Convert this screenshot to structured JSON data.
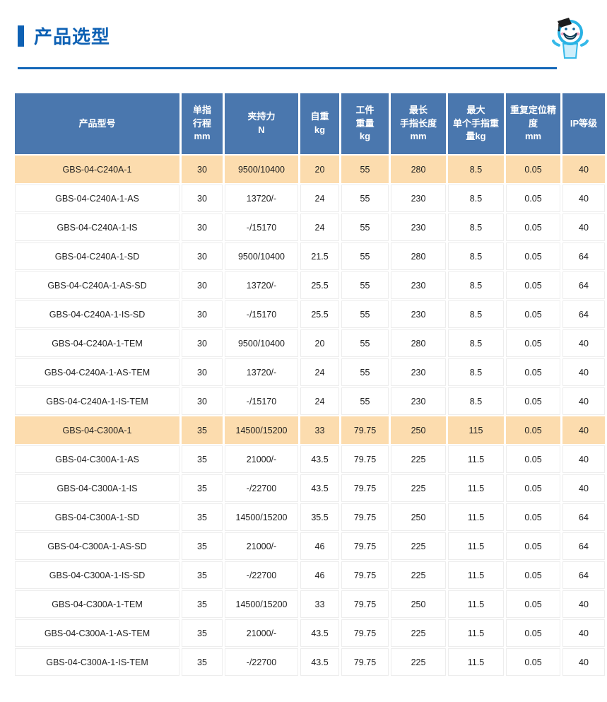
{
  "page": {
    "title": "产品选型",
    "mascot_icon": "mascot-graduate-icon"
  },
  "colors": {
    "accent_blue": "#0e61b4",
    "rule_blue": "#1467b8",
    "table_header_bg": "#4a77ae",
    "table_header_text": "#ffffff",
    "highlight_row_bg": "#fcdcae",
    "cell_text": "#1f1f1f"
  },
  "table": {
    "columns": [
      "产品型号",
      "单指\n行程\nmm",
      "夹持力\nN",
      "自重\nkg",
      "工件\n重量\nkg",
      "最长\n手指长度\nmm",
      "最大\n单个手指重\n量kg",
      "重复定位精度\nmm",
      "IP等级"
    ],
    "rows": [
      {
        "model": "GBS-04-C240A-1",
        "highlighted": true,
        "values": [
          "30",
          "9500/10400",
          "20",
          "55",
          "280",
          "8.5",
          "0.05",
          "40"
        ]
      },
      {
        "model": "GBS-04-C240A-1-AS",
        "highlighted": false,
        "values": [
          "30",
          "13720/-",
          "24",
          "55",
          "230",
          "8.5",
          "0.05",
          "40"
        ]
      },
      {
        "model": "GBS-04-C240A-1-IS",
        "highlighted": false,
        "values": [
          "30",
          "-/15170",
          "24",
          "55",
          "230",
          "8.5",
          "0.05",
          "40"
        ]
      },
      {
        "model": "GBS-04-C240A-1-SD",
        "highlighted": false,
        "values": [
          "30",
          "9500/10400",
          "21.5",
          "55",
          "280",
          "8.5",
          "0.05",
          "64"
        ]
      },
      {
        "model": "GBS-04-C240A-1-AS-SD",
        "highlighted": false,
        "values": [
          "30",
          "13720/-",
          "25.5",
          "55",
          "230",
          "8.5",
          "0.05",
          "64"
        ]
      },
      {
        "model": "GBS-04-C240A-1-IS-SD",
        "highlighted": false,
        "values": [
          "30",
          "-/15170",
          "25.5",
          "55",
          "230",
          "8.5",
          "0.05",
          "64"
        ]
      },
      {
        "model": "GBS-04-C240A-1-TEM",
        "highlighted": false,
        "values": [
          "30",
          "9500/10400",
          "20",
          "55",
          "280",
          "8.5",
          "0.05",
          "40"
        ]
      },
      {
        "model": "GBS-04-C240A-1-AS-TEM",
        "highlighted": false,
        "values": [
          "30",
          "13720/-",
          "24",
          "55",
          "230",
          "8.5",
          "0.05",
          "40"
        ]
      },
      {
        "model": "GBS-04-C240A-1-IS-TEM",
        "highlighted": false,
        "values": [
          "30",
          "-/15170",
          "24",
          "55",
          "230",
          "8.5",
          "0.05",
          "40"
        ]
      },
      {
        "model": "GBS-04-C300A-1",
        "highlighted": true,
        "values": [
          "35",
          "14500/15200",
          "33",
          "79.75",
          "250",
          "115",
          "0.05",
          "40"
        ]
      },
      {
        "model": "GBS-04-C300A-1-AS",
        "highlighted": false,
        "values": [
          "35",
          "21000/-",
          "43.5",
          "79.75",
          "225",
          "11.5",
          "0.05",
          "40"
        ]
      },
      {
        "model": "GBS-04-C300A-1-IS",
        "highlighted": false,
        "values": [
          "35",
          "-/22700",
          "43.5",
          "79.75",
          "225",
          "11.5",
          "0.05",
          "40"
        ]
      },
      {
        "model": "GBS-04-C300A-1-SD",
        "highlighted": false,
        "values": [
          "35",
          "14500/15200",
          "35.5",
          "79.75",
          "250",
          "11.5",
          "0.05",
          "64"
        ]
      },
      {
        "model": "GBS-04-C300A-1-AS-SD",
        "highlighted": false,
        "values": [
          "35",
          "21000/-",
          "46",
          "79.75",
          "225",
          "11.5",
          "0.05",
          "64"
        ]
      },
      {
        "model": "GBS-04-C300A-1-IS-SD",
        "highlighted": false,
        "values": [
          "35",
          "-/22700",
          "46",
          "79.75",
          "225",
          "11.5",
          "0.05",
          "64"
        ]
      },
      {
        "model": "GBS-04-C300A-1-TEM",
        "highlighted": false,
        "values": [
          "35",
          "14500/15200",
          "33",
          "79.75",
          "250",
          "11.5",
          "0.05",
          "40"
        ]
      },
      {
        "model": "GBS-04-C300A-1-AS-TEM",
        "highlighted": false,
        "values": [
          "35",
          "21000/-",
          "43.5",
          "79.75",
          "225",
          "11.5",
          "0.05",
          "40"
        ]
      },
      {
        "model": "GBS-04-C300A-1-IS-TEM",
        "highlighted": false,
        "values": [
          "35",
          "-/22700",
          "43.5",
          "79.75",
          "225",
          "11.5",
          "0.05",
          "40"
        ]
      }
    ]
  }
}
